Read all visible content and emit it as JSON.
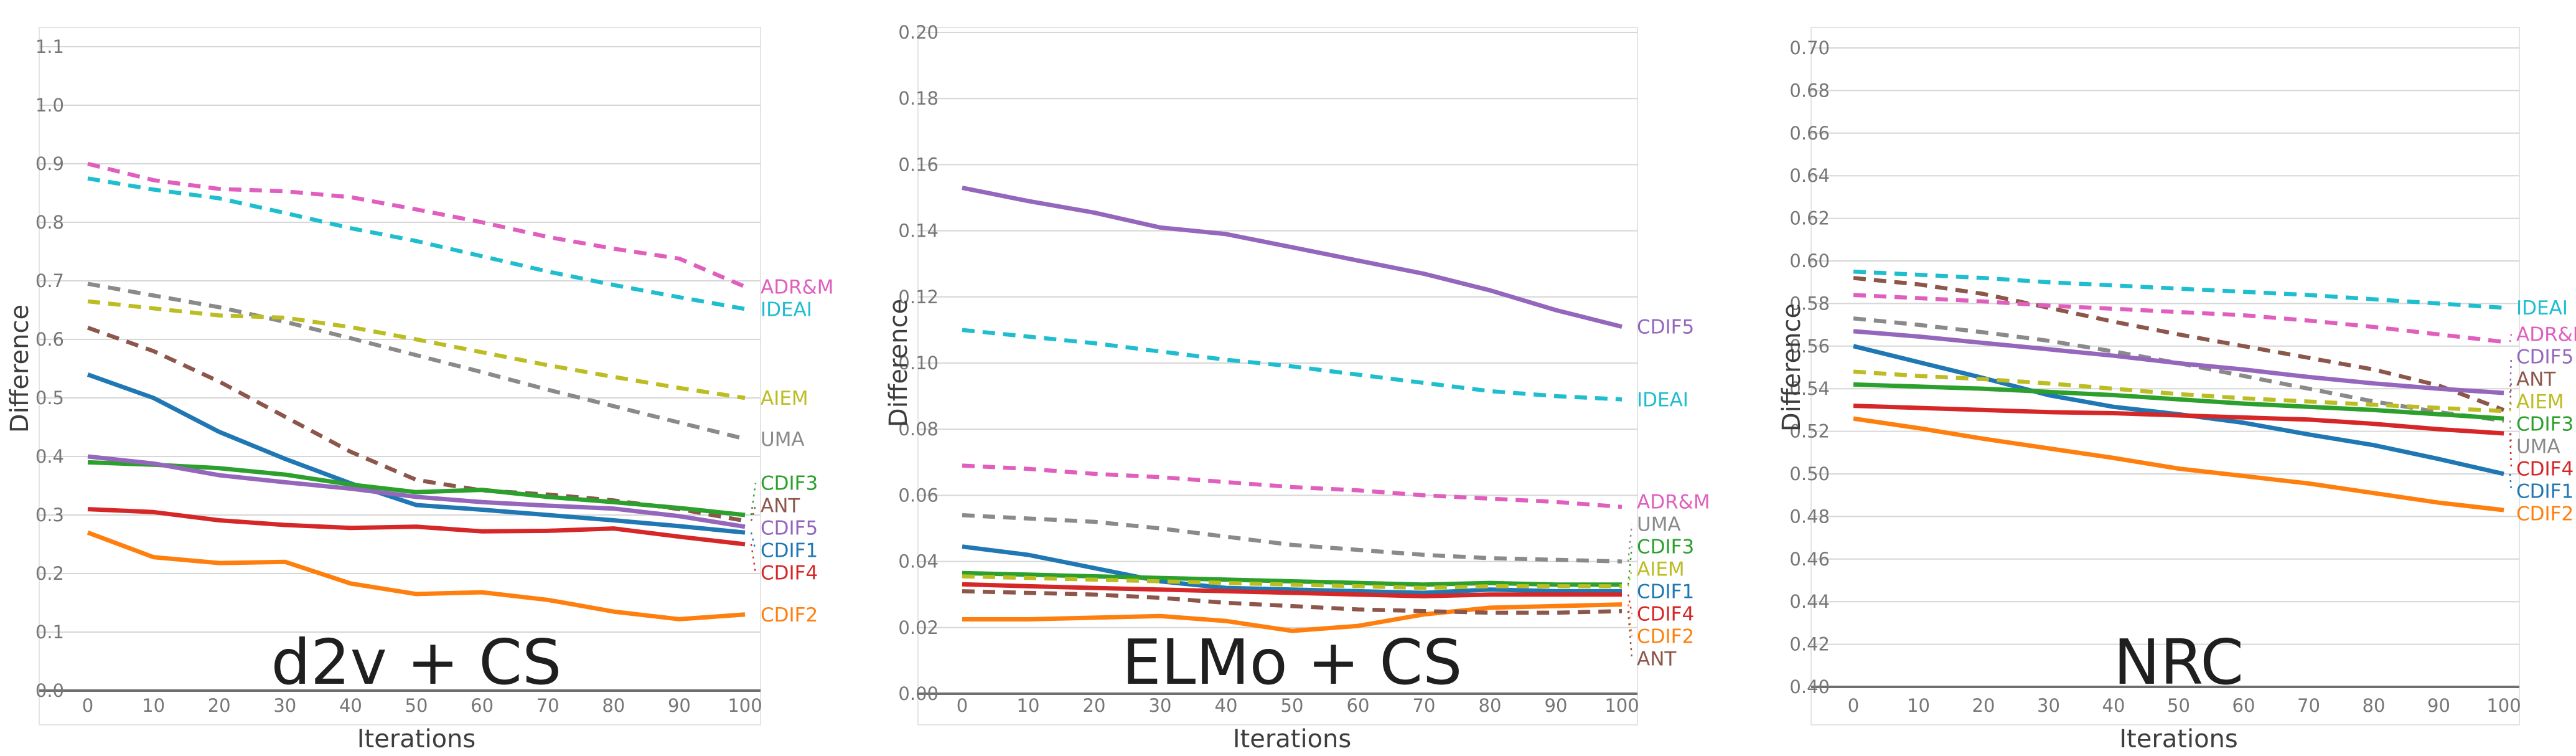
{
  "figure": {
    "background": "#ffffff",
    "grid_color": "#d6d6d6",
    "baseline_color": "#6f6f6f",
    "border_color": "#e4e4e4",
    "tick_color": "#767676",
    "title_color": "#1f1f1f",
    "axis_label_color": "#3d3d3d"
  },
  "chart_data": [
    {
      "type": "line",
      "title": "d2v + CS",
      "xlabel": "Iterations",
      "ylabel": "Difference",
      "x": [
        0,
        10,
        20,
        30,
        40,
        50,
        60,
        70,
        80,
        90,
        100
      ],
      "x_tick_labels": [
        "0",
        "10",
        "20",
        "30",
        "40",
        "50",
        "60",
        "70",
        "80",
        "90",
        "100"
      ],
      "ylim": [
        0.0,
        1.1
      ],
      "y_tick_step": 0.1,
      "y_tick_labels": [
        "0.0",
        "0.1",
        "0.2",
        "0.3",
        "0.4",
        "0.5",
        "0.6",
        "0.7",
        "0.8",
        "0.9",
        "1.0",
        "1.1"
      ],
      "grid": "horizontal",
      "legend_position": "right-edge-labels",
      "series": [
        {
          "name": "ADR&M",
          "color": "#e05fbe",
          "style": "dashed",
          "values": [
            0.9,
            0.872,
            0.857,
            0.853,
            0.843,
            0.822,
            0.8,
            0.775,
            0.755,
            0.738,
            0.69
          ]
        },
        {
          "name": "IDEAI",
          "color": "#1fbecf",
          "style": "dashed",
          "values": [
            0.875,
            0.856,
            0.841,
            0.816,
            0.79,
            0.768,
            0.742,
            0.716,
            0.693,
            0.672,
            0.652
          ]
        },
        {
          "name": "UMA",
          "color": "#8a8a8a",
          "style": "dashed",
          "values": [
            0.695,
            0.675,
            0.655,
            0.63,
            0.602,
            0.573,
            0.544,
            0.514,
            0.486,
            0.458,
            0.43
          ]
        },
        {
          "name": "AIEM",
          "color": "#bcbd22",
          "style": "dashed",
          "values": [
            0.665,
            0.653,
            0.641,
            0.637,
            0.621,
            0.6,
            0.578,
            0.556,
            0.536,
            0.517,
            0.5
          ]
        },
        {
          "name": "ANT",
          "color": "#8c564b",
          "style": "dashed",
          "values": [
            0.62,
            0.58,
            0.528,
            0.468,
            0.408,
            0.36,
            0.342,
            0.335,
            0.325,
            0.31,
            0.29
          ]
        },
        {
          "name": "CDIF1",
          "color": "#1f77b4",
          "style": "solid",
          "values": [
            0.54,
            0.5,
            0.442,
            0.396,
            0.354,
            0.317,
            0.309,
            0.3,
            0.291,
            0.281,
            0.27
          ]
        },
        {
          "name": "CDIF2",
          "color": "#ff7f0e",
          "style": "solid",
          "values": [
            0.27,
            0.228,
            0.218,
            0.22,
            0.183,
            0.165,
            0.168,
            0.155,
            0.135,
            0.122,
            0.13
          ]
        },
        {
          "name": "CDIF3",
          "color": "#2ca02c",
          "style": "solid",
          "values": [
            0.39,
            0.386,
            0.38,
            0.369,
            0.352,
            0.339,
            0.343,
            0.331,
            0.322,
            0.312,
            0.3
          ]
        },
        {
          "name": "CDIF4",
          "color": "#d62728",
          "style": "solid",
          "values": [
            0.31,
            0.305,
            0.291,
            0.283,
            0.278,
            0.28,
            0.272,
            0.273,
            0.277,
            0.263,
            0.25
          ]
        },
        {
          "name": "CDIF5",
          "color": "#9467bd",
          "style": "solid",
          "values": [
            0.4,
            0.388,
            0.368,
            0.356,
            0.345,
            0.331,
            0.322,
            0.316,
            0.311,
            0.298,
            0.28
          ]
        }
      ]
    },
    {
      "type": "line",
      "title": "ELMo + CS",
      "xlabel": "Iterations",
      "ylabel": "Difference",
      "x": [
        0,
        10,
        20,
        30,
        40,
        50,
        60,
        70,
        80,
        90,
        100
      ],
      "x_tick_labels": [
        "0",
        "10",
        "20",
        "30",
        "40",
        "50",
        "60",
        "70",
        "80",
        "90",
        "100"
      ],
      "ylim": [
        0.0,
        0.2
      ],
      "y_tick_step": 0.02,
      "y_tick_labels": [
        "0.00",
        "0.02",
        "0.04",
        "0.06",
        "0.08",
        "0.10",
        "0.12",
        "0.14",
        "0.16",
        "0.18",
        "0.20"
      ],
      "grid": "horizontal",
      "legend_position": "right-edge-labels",
      "series": [
        {
          "name": "CDIF5",
          "color": "#9467bd",
          "style": "solid",
          "values": [
            0.153,
            0.149,
            0.1455,
            0.141,
            0.139,
            0.135,
            0.131,
            0.127,
            0.122,
            0.116,
            0.111
          ]
        },
        {
          "name": "IDEAI",
          "color": "#1fbecf",
          "style": "dashed",
          "values": [
            0.11,
            0.108,
            0.106,
            0.1035,
            0.101,
            0.099,
            0.0965,
            0.094,
            0.0915,
            0.09,
            0.089
          ]
        },
        {
          "name": "ADR&M",
          "color": "#e05fbe",
          "style": "dashed",
          "values": [
            0.069,
            0.068,
            0.0665,
            0.0655,
            0.064,
            0.0625,
            0.0615,
            0.06,
            0.059,
            0.058,
            0.0565
          ]
        },
        {
          "name": "UMA",
          "color": "#8a8a8a",
          "style": "dashed",
          "values": [
            0.054,
            0.053,
            0.052,
            0.05,
            0.0475,
            0.045,
            0.0435,
            0.042,
            0.041,
            0.0405,
            0.04
          ]
        },
        {
          "name": "CDIF1",
          "color": "#1f77b4",
          "style": "solid",
          "values": [
            0.0445,
            0.042,
            0.038,
            0.034,
            0.032,
            0.0315,
            0.031,
            0.0305,
            0.0315,
            0.031,
            0.031
          ]
        },
        {
          "name": "CDIF3",
          "color": "#2ca02c",
          "style": "solid",
          "values": [
            0.0365,
            0.036,
            0.0355,
            0.035,
            0.0345,
            0.034,
            0.0335,
            0.033,
            0.0335,
            0.033,
            0.033
          ]
        },
        {
          "name": "AIEM",
          "color": "#bcbd22",
          "style": "dashed",
          "values": [
            0.0355,
            0.035,
            0.0345,
            0.034,
            0.0335,
            0.033,
            0.0325,
            0.032,
            0.0325,
            0.0325,
            0.0325
          ]
        },
        {
          "name": "CDIF4",
          "color": "#d62728",
          "style": "solid",
          "values": [
            0.0331,
            0.0325,
            0.032,
            0.0315,
            0.031,
            0.0305,
            0.03,
            0.0295,
            0.03,
            0.03,
            0.03
          ]
        },
        {
          "name": "CDIF2",
          "color": "#ff7f0e",
          "style": "solid",
          "values": [
            0.0225,
            0.0225,
            0.023,
            0.0235,
            0.022,
            0.019,
            0.0205,
            0.024,
            0.026,
            0.0265,
            0.027
          ]
        },
        {
          "name": "ANT",
          "color": "#8c564b",
          "style": "dashed",
          "values": [
            0.031,
            0.0305,
            0.03,
            0.029,
            0.0275,
            0.0265,
            0.0255,
            0.025,
            0.0245,
            0.0245,
            0.025
          ]
        }
      ]
    },
    {
      "type": "line",
      "title": "NRC",
      "xlabel": "Iterations",
      "ylabel": "Difference",
      "x": [
        0,
        10,
        20,
        30,
        40,
        50,
        60,
        70,
        80,
        90,
        100
      ],
      "x_tick_labels": [
        "0",
        "10",
        "20",
        "30",
        "40",
        "50",
        "60",
        "70",
        "80",
        "90",
        "100"
      ],
      "ylim": [
        0.4,
        0.7
      ],
      "y_tick_step": 0.02,
      "y_tick_labels": [
        "0.40",
        "0.42",
        "0.44",
        "0.46",
        "0.48",
        "0.50",
        "0.52",
        "0.54",
        "0.56",
        "0.58",
        "0.60",
        "0.62",
        "0.64",
        "0.66",
        "0.68",
        "0.70"
      ],
      "grid": "horizontal",
      "legend_position": "right-edge-labels",
      "series": [
        {
          "name": "IDEAI",
          "color": "#1fbecf",
          "style": "dashed",
          "values": [
            0.595,
            0.5935,
            0.592,
            0.59,
            0.5885,
            0.587,
            0.5855,
            0.584,
            0.582,
            0.58,
            0.578
          ]
        },
        {
          "name": "ANT",
          "color": "#8c564b",
          "style": "dashed",
          "values": [
            0.592,
            0.589,
            0.5845,
            0.578,
            0.5715,
            0.5655,
            0.56,
            0.5545,
            0.549,
            0.5415,
            0.53
          ]
        },
        {
          "name": "ADR&M",
          "color": "#e05fbe",
          "style": "dashed",
          "values": [
            0.584,
            0.5825,
            0.581,
            0.579,
            0.5775,
            0.576,
            0.5745,
            0.572,
            0.569,
            0.5655,
            0.562
          ]
        },
        {
          "name": "UMA",
          "color": "#8a8a8a",
          "style": "dashed",
          "values": [
            0.573,
            0.57,
            0.5665,
            0.5625,
            0.5575,
            0.552,
            0.546,
            0.54,
            0.534,
            0.529,
            0.525
          ]
        },
        {
          "name": "CDIF5",
          "color": "#9467bd",
          "style": "solid",
          "values": [
            0.567,
            0.5645,
            0.5615,
            0.5585,
            0.5555,
            0.552,
            0.549,
            0.5455,
            0.5425,
            0.54,
            0.538
          ]
        },
        {
          "name": "CDIF1",
          "color": "#1f77b4",
          "style": "solid",
          "values": [
            0.56,
            0.5525,
            0.545,
            0.537,
            0.5315,
            0.528,
            0.524,
            0.5185,
            0.5135,
            0.507,
            0.5
          ]
        },
        {
          "name": "AIEM",
          "color": "#bcbd22",
          "style": "dashed",
          "values": [
            0.548,
            0.546,
            0.5445,
            0.5425,
            0.54,
            0.5375,
            0.5355,
            0.534,
            0.5325,
            0.531,
            0.5295
          ]
        },
        {
          "name": "CDIF3",
          "color": "#2ca02c",
          "style": "solid",
          "values": [
            0.542,
            0.541,
            0.54,
            0.5385,
            0.537,
            0.535,
            0.533,
            0.5315,
            0.53,
            0.528,
            0.526
          ]
        },
        {
          "name": "CDIF4",
          "color": "#d62728",
          "style": "solid",
          "values": [
            0.532,
            0.531,
            0.53,
            0.529,
            0.5285,
            0.5275,
            0.5265,
            0.5255,
            0.5235,
            0.521,
            0.519
          ]
        },
        {
          "name": "CDIF2",
          "color": "#ff7f0e",
          "style": "solid",
          "values": [
            0.526,
            0.5215,
            0.5165,
            0.512,
            0.5075,
            0.5025,
            0.499,
            0.4955,
            0.491,
            0.4865,
            0.483
          ]
        }
      ]
    }
  ]
}
